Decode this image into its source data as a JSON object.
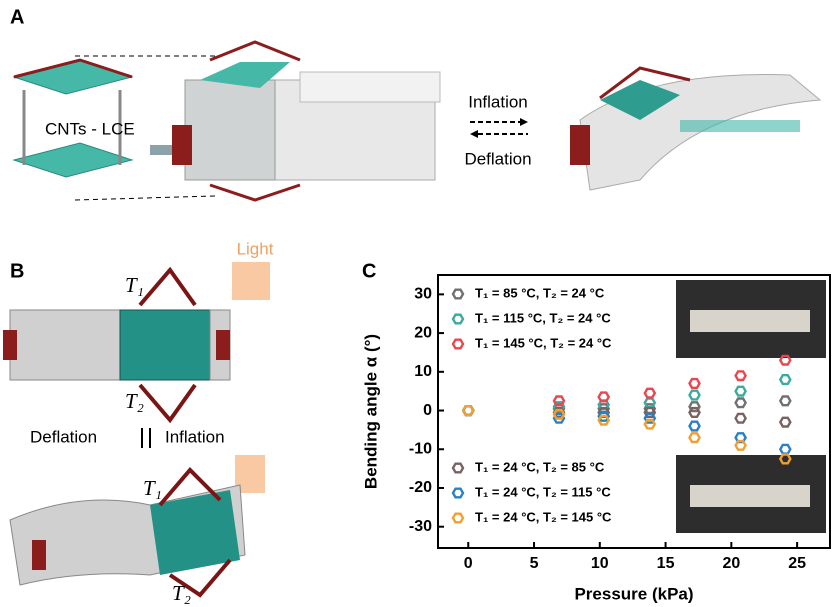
{
  "panels": {
    "a": {
      "letter": "A",
      "material": "CNTs - LCE",
      "inflation": "Inflation",
      "deflation": "Deflation"
    },
    "b": {
      "letter": "B",
      "light": "Light",
      "t1_top": "T₁",
      "t2_top": "T₂",
      "deflation": "Deflation",
      "inflation": "Inflation",
      "t1_bottom": "T₁",
      "t2_bottom": "T₂"
    },
    "c": {
      "letter": "C"
    }
  },
  "chart_data": {
    "type": "scatter",
    "xlabel": "Pressure (kPa)",
    "ylabel": "Bending angle α (°)",
    "xlim": [
      -2.3,
      27.5
    ],
    "ylim": [
      -35.5,
      35
    ],
    "xticks": [
      0,
      5,
      10,
      15,
      20,
      25
    ],
    "yticks": [
      -30,
      -20,
      -10,
      0,
      10,
      20,
      30
    ],
    "series": [
      {
        "name": "T₁ = 85 °C, T₂ = 24 °C",
        "color": "#707070",
        "x": [
          0,
          6.9,
          10.3,
          13.8,
          17.2,
          20.7,
          24.1
        ],
        "values": [
          0,
          0.5,
          0.5,
          0.5,
          1,
          2,
          2.5
        ]
      },
      {
        "name": "T₁ = 115 °C, T₂ = 24 °C",
        "color": "#3aab9f",
        "x": [
          0,
          6.9,
          10.3,
          13.8,
          17.2,
          20.7,
          24.1
        ],
        "values": [
          0,
          1,
          1.5,
          2,
          4,
          5,
          8
        ]
      },
      {
        "name": "T₁ = 145 °C, T₂ = 24 °C",
        "color": "#e8474f",
        "x": [
          0,
          6.9,
          10.3,
          13.8,
          17.2,
          20.7,
          24.1
        ],
        "values": [
          0,
          2.5,
          3.5,
          4.5,
          7,
          9,
          13
        ]
      },
      {
        "name": "T₁ = 24 °C, T₂ = 85 °C",
        "color": "#7a6262",
        "x": [
          0,
          6.9,
          10.3,
          13.8,
          17.2,
          20.7,
          24.1
        ],
        "values": [
          0,
          -0.5,
          -0.5,
          -0.5,
          -0.5,
          -2,
          -3
        ]
      },
      {
        "name": "T₁ = 24 °C, T₂ = 115 °C",
        "color": "#2a80c6",
        "x": [
          0,
          6.9,
          10.3,
          13.8,
          17.2,
          20.7,
          24.1
        ],
        "values": [
          0,
          -2,
          -1.5,
          -2,
          -4,
          -7,
          -10
        ]
      },
      {
        "name": "T₁ = 24 °C, T₂ = 145 °C",
        "color": "#f0a030",
        "x": [
          0,
          6.9,
          10.3,
          13.8,
          17.2,
          20.7,
          24.1
        ],
        "values": [
          0,
          -1,
          -2.5,
          -3.5,
          -7,
          -9,
          -12.5
        ]
      }
    ]
  }
}
